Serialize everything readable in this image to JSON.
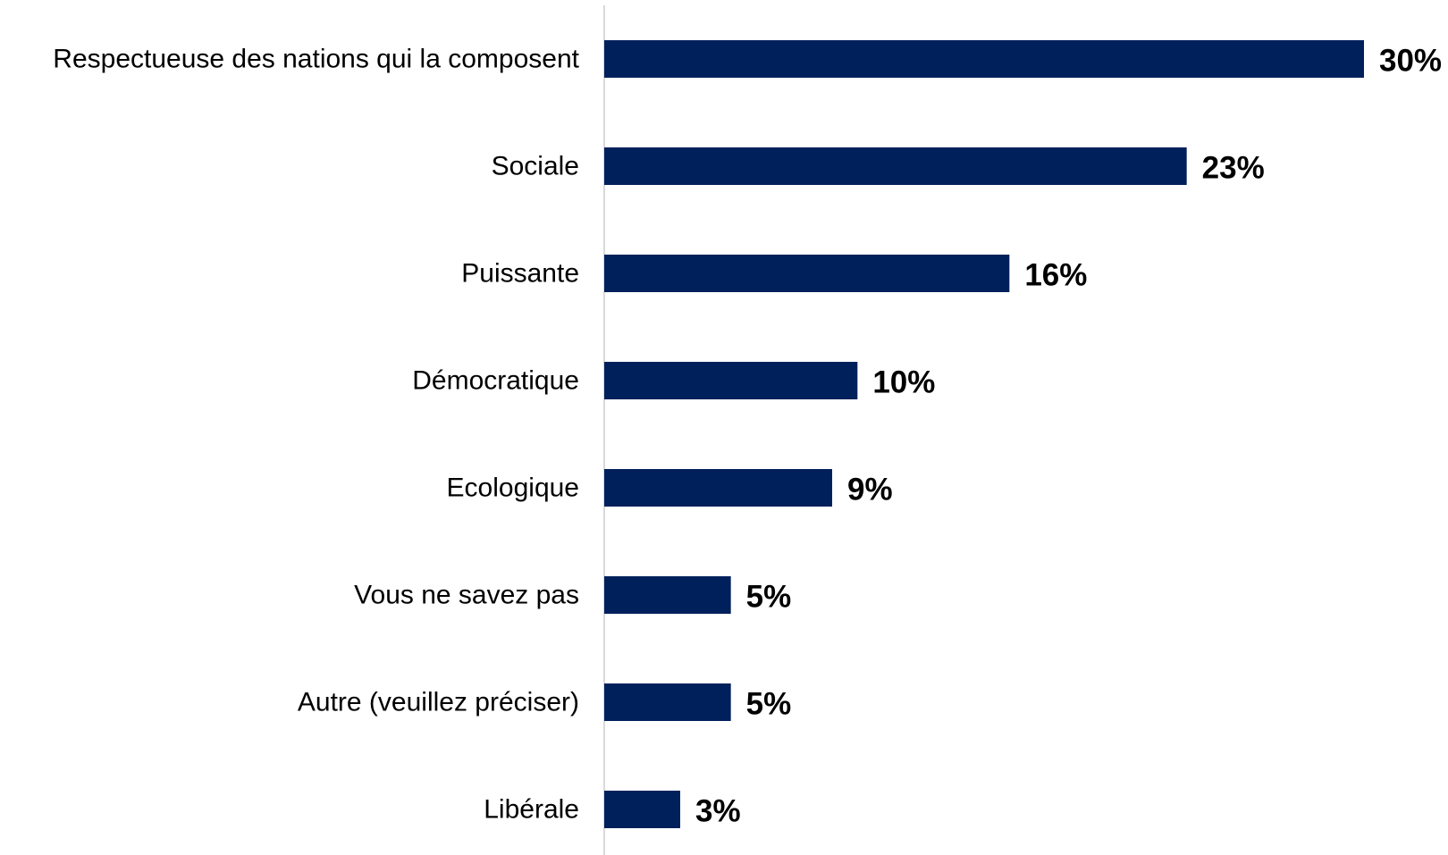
{
  "chart_data": {
    "type": "bar",
    "orientation": "horizontal",
    "categories": [
      "Respectueuse des nations qui la composent",
      "Sociale",
      "Puissante",
      "Démocratique",
      "Ecologique",
      "Vous ne savez pas",
      "Autre (veuillez préciser)",
      "Libérale"
    ],
    "values": [
      30,
      23,
      16,
      10,
      9,
      5,
      5,
      3
    ],
    "value_labels": [
      "30%",
      "23%",
      "16%",
      "10%",
      "9%",
      "5%",
      "5%",
      "3%"
    ],
    "unit": "%",
    "xlim": [
      0,
      30
    ],
    "grid": false,
    "legend": "none",
    "colors": {
      "bar": "#00205B",
      "axis": "#D9D9D9",
      "text": "#000000"
    }
  }
}
